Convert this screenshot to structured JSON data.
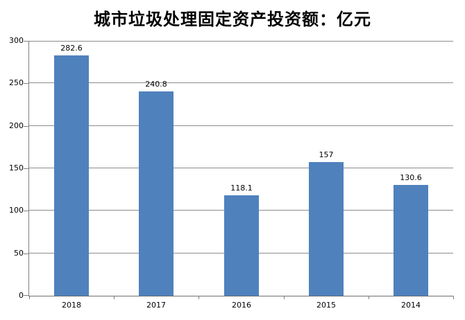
{
  "title": "城市垃圾处理固定资产投资额：亿元",
  "chart_data": {
    "type": "bar",
    "title": "城市垃圾处理固定资产投资额：亿元",
    "categories": [
      "2018",
      "2017",
      "2016",
      "2015",
      "2014"
    ],
    "values": [
      282.6,
      240.8,
      118.1,
      157,
      130.6
    ],
    "value_labels": [
      "282.6",
      "240.8",
      "118.1",
      "157",
      "130.6"
    ],
    "xlabel": "",
    "ylabel": "",
    "ylim": [
      0,
      300
    ],
    "yticks": [
      0,
      50,
      100,
      150,
      200,
      250,
      300
    ],
    "ytick_labels": [
      "0",
      "50",
      "100",
      "150",
      "200",
      "250",
      "300"
    ],
    "grid": true,
    "legend": false,
    "colors": {
      "bar": "#4f81bd",
      "gridline": "#8c8c8c",
      "axis": "#808080",
      "text": "#000000",
      "background": "#ffffff"
    }
  }
}
